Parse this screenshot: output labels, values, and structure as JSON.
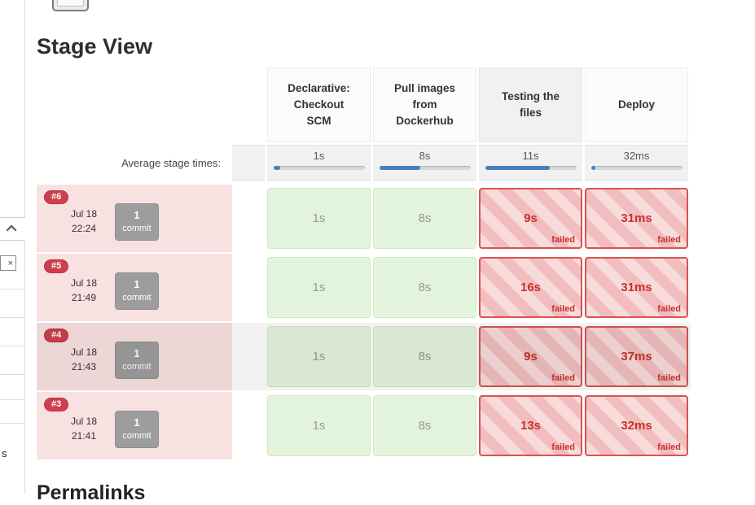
{
  "page": {
    "title": "Stage View",
    "next_section_heading": "Permalinks"
  },
  "sidebar": {
    "close_label": "×",
    "stray_text": "s"
  },
  "stage_view": {
    "columns": [
      "Declarative: Checkout SCM",
      "Pull images from Dockerhub",
      "Testing the files",
      "Deploy"
    ],
    "average": {
      "label": "Average stage times:",
      "cells": [
        {
          "value": "1s",
          "bar_pct": 8
        },
        {
          "value": "8s",
          "bar_pct": 45
        },
        {
          "value": "11s",
          "bar_pct": 71
        },
        {
          "value": "32ms",
          "bar_pct": 5
        }
      ]
    },
    "builds": [
      {
        "number": "#6",
        "date": "Jul 18",
        "time": "22:24",
        "commit_count": "1",
        "commit_label": "commit",
        "cells": [
          {
            "value": "1s",
            "status": "success"
          },
          {
            "value": "8s",
            "status": "success"
          },
          {
            "value": "9s",
            "status": "failed",
            "status_label": "failed"
          },
          {
            "value": "31ms",
            "status": "failed",
            "status_label": "failed"
          }
        ]
      },
      {
        "number": "#5",
        "date": "Jul 18",
        "time": "21:49",
        "commit_count": "1",
        "commit_label": "commit",
        "cells": [
          {
            "value": "1s",
            "status": "success"
          },
          {
            "value": "8s",
            "status": "success"
          },
          {
            "value": "16s",
            "status": "failed",
            "status_label": "failed"
          },
          {
            "value": "31ms",
            "status": "failed",
            "status_label": "failed"
          }
        ]
      },
      {
        "number": "#4",
        "date": "Jul 18",
        "time": "21:43",
        "commit_count": "1",
        "commit_label": "commit",
        "cells": [
          {
            "value": "1s",
            "status": "success"
          },
          {
            "value": "8s",
            "status": "success"
          },
          {
            "value": "9s",
            "status": "failed",
            "status_label": "failed"
          },
          {
            "value": "37ms",
            "status": "failed",
            "status_label": "failed"
          }
        ]
      },
      {
        "number": "#3",
        "date": "Jul 18",
        "time": "21:41",
        "commit_count": "1",
        "commit_label": "commit",
        "cells": [
          {
            "value": "1s",
            "status": "success"
          },
          {
            "value": "8s",
            "status": "success"
          },
          {
            "value": "13s",
            "status": "failed",
            "status_label": "failed"
          },
          {
            "value": "32ms",
            "status": "failed",
            "status_label": "failed"
          }
        ]
      }
    ]
  },
  "colors": {
    "badge_red": "#cf3e4c",
    "failed_border": "#d9534f",
    "failed_text": "#c9302c",
    "success_bg": "#e3f4dc",
    "row_pink": "#f8e1e1",
    "progress_blue": "#4a7fc1"
  }
}
